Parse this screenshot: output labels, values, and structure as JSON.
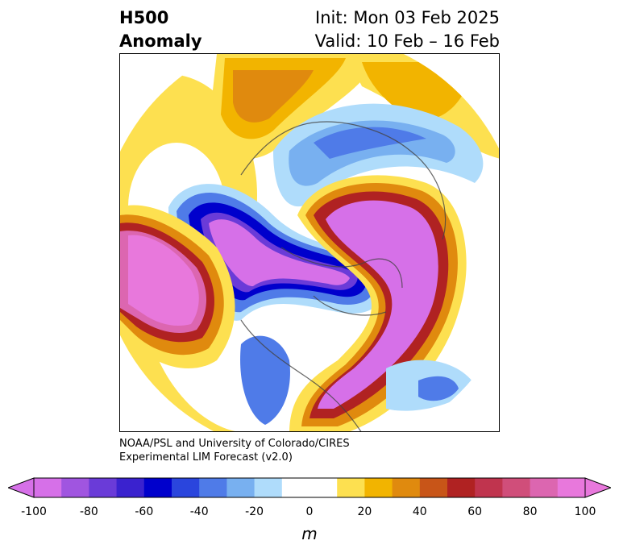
{
  "title": {
    "left_line1": "H500",
    "left_line2": "Anomaly",
    "right_line1": "Init: Mon 03 Feb 2025",
    "right_line2": "Valid: 10 Feb – 16 Feb"
  },
  "credit": {
    "line1": "NOAA/PSL and University of Colorado/CIRES",
    "line2": "Experimental LIM Forecast (v2.0)"
  },
  "colorbar": {
    "units": "m",
    "ticks": [
      "-100",
      "-80",
      "-60",
      "-40",
      "-20",
      "0",
      "20",
      "40",
      "60",
      "80",
      "100"
    ],
    "colors": [
      "#d670e8",
      "#a055e0",
      "#6a3bd8",
      "#3a22cf",
      "#0000cc",
      "#2a45dd",
      "#4f7be8",
      "#78b0f0",
      "#afdcfb",
      "#ffffff",
      "#ffffff",
      "#fde050",
      "#f2b400",
      "#e08a0e",
      "#c85518",
      "#b02222",
      "#c0344e",
      "#d04e7a",
      "#dc66b0",
      "#e878dc"
    ]
  }
}
